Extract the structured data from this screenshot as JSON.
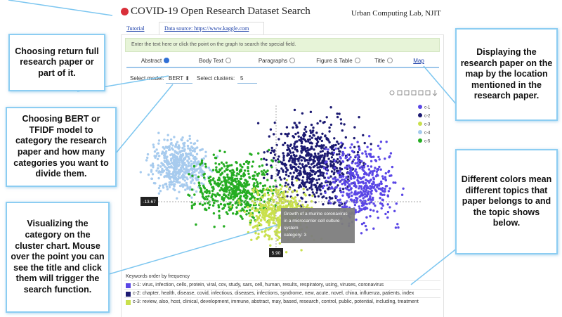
{
  "header": {
    "title": "COVID-19 Open Research Dataset Search",
    "lab": "Urban Computing Lab, NJIT"
  },
  "links": [
    "Tutorial",
    "Data source: https://www.kaggle.com"
  ],
  "search_placeholder": "Enter the text here or click the point on the graph to search the special field.",
  "tabs": [
    "Abstract",
    "Body Text",
    "Paragraphs",
    "Figure & Table",
    "Title",
    "Map"
  ],
  "controls": {
    "model_label": "Select model:",
    "model": "BERT",
    "clusters_label": "Select clusters:",
    "clusters": 5
  },
  "legend": [
    {
      "name": "c-1",
      "color": "#5a46e6"
    },
    {
      "name": "c-2",
      "color": "#1c1a72"
    },
    {
      "name": "c-3",
      "color": "#c9e04c"
    },
    {
      "name": "c-4",
      "color": "#a7cbee"
    },
    {
      "name": "c-5",
      "color": "#25ad22"
    }
  ],
  "crosshair": {
    "y_label": "-13.67",
    "x_label": "5.90"
  },
  "tooltip": {
    "lines": [
      "Growth of a murine coronavirus",
      "in a microcarrier cell culture",
      "system",
      "category: 3"
    ]
  },
  "keywords": {
    "title": "Keywords order by frequency",
    "rows": [
      "c-1: virus, infection, cells, protein, viral, cov, study, sars, cell, human, results, respiratory, using, viruses, coronavirus",
      "c-2: chapter, health, disease, covid, infectious, diseases, infections, syndrome, new, acute, novel, china, influenza, patients, index",
      "c-3: review, also, host, clinical, development, immune, abstract, may, based, research, control, public, potential, including, treatment"
    ]
  },
  "callouts": [
    "Choosing return full research paper or part of it.",
    "Choosing BERT or TFIDF model to category the research paper and how many categories you want to divide them.",
    "Visualizing the category on the cluster chart. Mouse over the point you can see the title and click them will trigger the search function.",
    "Displaying the research paper on the map by the location mentioned in the research paper.",
    "Different colors mean different topics that paper belongs to and the topic shows below."
  ]
}
